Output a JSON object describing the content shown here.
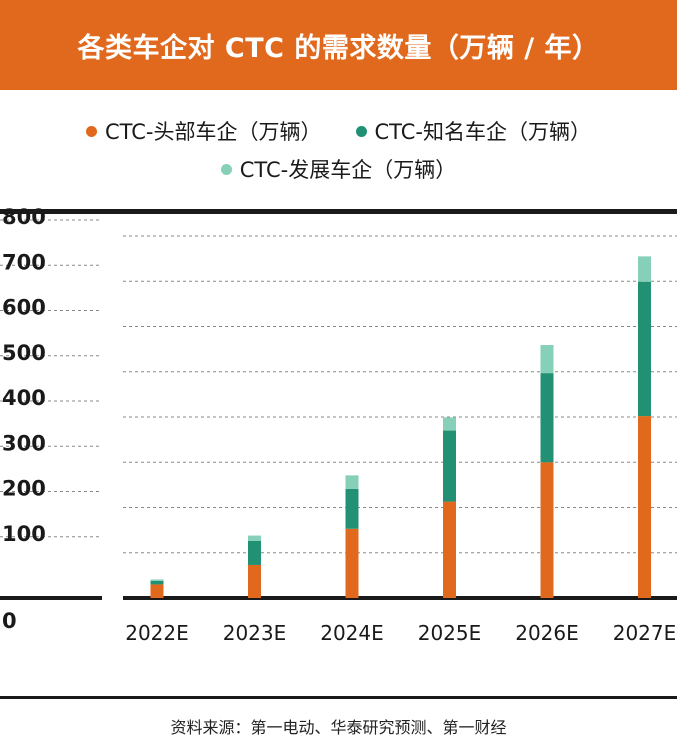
{
  "title": "各类车企对 CTC 的需求数量（万辆 / 年）",
  "colors": {
    "title_bg": "#e0691d",
    "series": [
      "#e0691d",
      "#219073",
      "#86cfb8"
    ]
  },
  "legend": {
    "head": "CTC-头部车企（万辆）",
    "known": "CTC-知名车企（万辆）",
    "developing": "CTC-发展车企（万辆）"
  },
  "source": "资料来源：第一电动、华泰研究预测、第一财经",
  "chart_data": {
    "type": "bar",
    "stacked": true,
    "categories": [
      "2022E",
      "2023E",
      "2024E",
      "2025E",
      "2026E",
      "2027E"
    ],
    "series": [
      {
        "name": "CTC-头部车企（万辆）",
        "values": [
          30,
          73,
          153,
          213,
          300,
          402
        ]
      },
      {
        "name": "CTC-知名车企（万辆）",
        "values": [
          8,
          53,
          88,
          157,
          197,
          297
        ]
      },
      {
        "name": "CTC-发展车企（万辆）",
        "values": [
          3,
          12,
          30,
          29,
          62,
          56
        ]
      }
    ],
    "yticks": [
      0,
      100,
      200,
      300,
      400,
      500,
      600,
      700,
      800
    ],
    "ylim": [
      0,
      800
    ],
    "grid": true,
    "legend_position": "top"
  }
}
